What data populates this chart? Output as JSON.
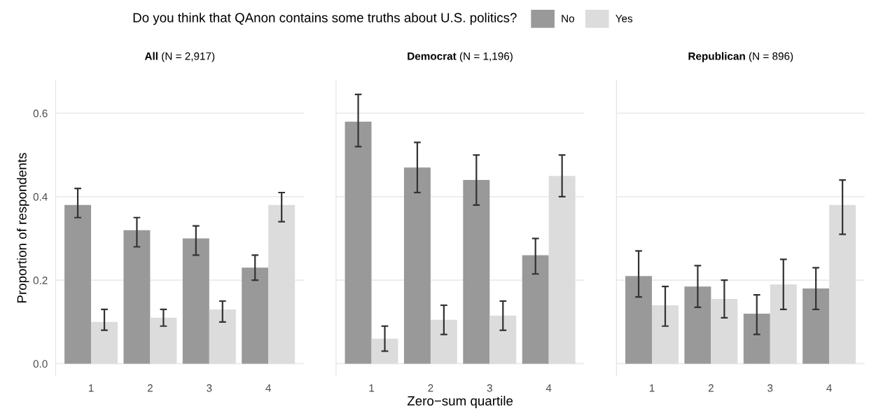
{
  "chart_data": [
    {
      "type": "bar",
      "title": "All (N = 2,917)",
      "ylabel": "Proportion of respondents",
      "legend_title": "Do you think that QAnon contains some truths about U.S. politics?",
      "legend": "top",
      "categories": [
        "1",
        "2",
        "3",
        "4"
      ],
      "ylim": [
        -0.03,
        0.68
      ],
      "yticks": [
        {
          "value": 0,
          "label": "0.0"
        },
        0.2,
        0.4,
        0.6
      ],
      "grid": "y",
      "series": [
        {
          "name": "No",
          "color": "#999999",
          "values": [
            0.38,
            0.32,
            0.3,
            0.23
          ],
          "errors": [
            [
              0.35,
              0.42
            ],
            [
              0.28,
              0.35
            ],
            [
              0.26,
              0.33
            ],
            [
              0.2,
              0.26
            ]
          ]
        },
        {
          "name": "Yes",
          "color": "#dcdcdc",
          "values": [
            0.1,
            0.11,
            0.13,
            0.38
          ],
          "errors": [
            [
              0.08,
              0.13
            ],
            [
              0.09,
              0.13
            ],
            [
              0.1,
              0.15
            ],
            [
              0.34,
              0.41
            ]
          ]
        }
      ]
    },
    {
      "type": "bar",
      "title": "Democrat (N = 1,196)",
      "xlabel": "Zero−sum quartile",
      "categories": [
        "1",
        "2",
        "3",
        "4"
      ],
      "ylim": [
        -0.03,
        0.68
      ],
      "yticks": [
        0,
        0.2,
        0.4,
        0.6
      ],
      "grid": "y",
      "tick_labels": "x",
      "series": [
        {
          "color": "#999999",
          "values": [
            0.58,
            0.47,
            0.44,
            0.26
          ],
          "errors": [
            [
              0.52,
              0.645
            ],
            [
              0.41,
              0.53
            ],
            [
              0.38,
              0.5
            ],
            [
              0.215,
              0.3
            ]
          ]
        },
        {
          "color": "#dcdcdc",
          "values": [
            0.06,
            0.105,
            0.115,
            0.45
          ],
          "errors": [
            [
              0.03,
              0.09
            ],
            [
              0.07,
              0.14
            ],
            [
              0.08,
              0.15
            ],
            [
              0.4,
              0.5
            ]
          ]
        }
      ]
    },
    {
      "type": "bar",
      "title": "Republican (N = 896)",
      "categories": [
        "1",
        "2",
        "3",
        "4"
      ],
      "ylim": [
        -0.03,
        0.68
      ],
      "yticks": [
        0,
        0.2,
        0.4,
        0.6
      ],
      "grid": "y",
      "tick_labels": "x",
      "series": [
        {
          "color": "#999999",
          "values": [
            0.21,
            0.185,
            0.12,
            0.18
          ],
          "errors": [
            [
              0.16,
              0.27
            ],
            [
              0.135,
              0.235
            ],
            [
              0.07,
              0.165
            ],
            [
              0.13,
              0.23
            ]
          ]
        },
        {
          "color": "#dcdcdc",
          "values": [
            0.14,
            0.155,
            0.19,
            0.38
          ],
          "errors": [
            [
              0.09,
              0.185
            ],
            [
              0.11,
              0.2
            ],
            [
              0.13,
              0.25
            ],
            [
              0.31,
              0.44
            ]
          ]
        }
      ]
    }
  ]
}
